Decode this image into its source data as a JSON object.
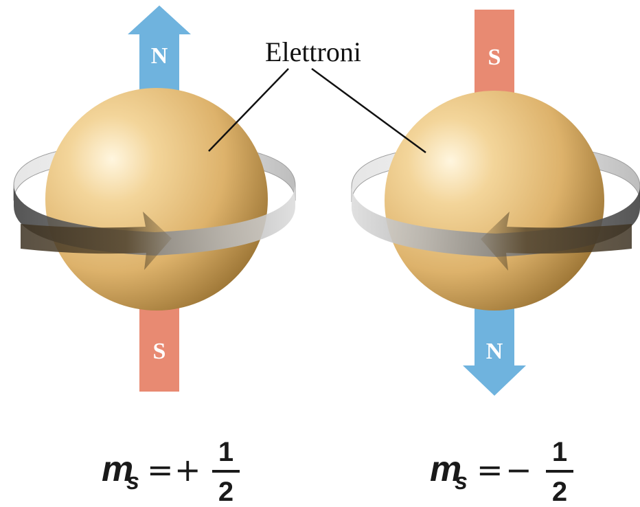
{
  "callout": {
    "label": "Elettroni"
  },
  "colors": {
    "north": "#6fb3de",
    "south": "#e88a72",
    "sphere_light": "#fbeac6",
    "sphere_mid": "#e0b36c",
    "sphere_dark": "#a17a39",
    "ring_light": "#d8d8d8",
    "ring_dark": "#4a4a4a",
    "spin_arrow": "#5a4a2f"
  },
  "electrons": [
    {
      "top_pole": "N",
      "bottom_pole": "S",
      "spin_direction": "right",
      "quantum_number": {
        "symbol": "m",
        "subscript": "s",
        "equals": "=",
        "sign": "+",
        "numerator": "1",
        "denominator": "2"
      }
    },
    {
      "top_pole": "S",
      "bottom_pole": "N",
      "spin_direction": "left",
      "quantum_number": {
        "symbol": "m",
        "subscript": "s",
        "equals": "=",
        "sign": "−",
        "numerator": "1",
        "denominator": "2"
      }
    }
  ]
}
